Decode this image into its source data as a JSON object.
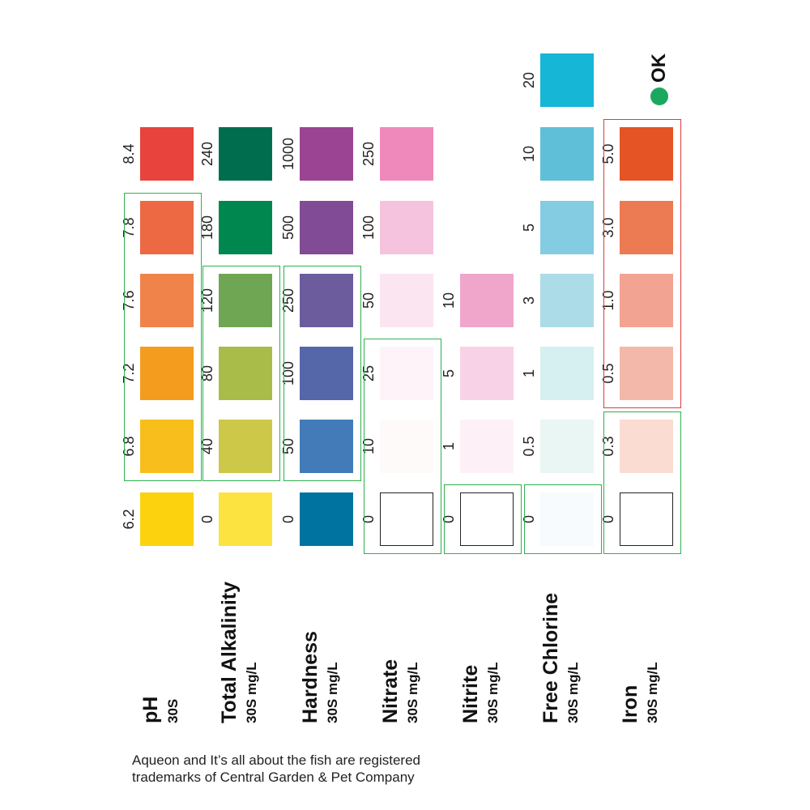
{
  "colors": {
    "ok_green": "#1aa860",
    "range_green": "#2fb04f",
    "range_red": "#e03c3c"
  },
  "ok_label": "OK",
  "footer": {
    "line1": "Aqueon and It’s all about the fish are registered",
    "line2": "trademarks of Central Garden & Pet Company"
  },
  "columns": [
    {
      "name": "pH",
      "unit": "30S",
      "pads": [
        {
          "value": "6.2",
          "color": "#fcd20f"
        },
        {
          "value": "6.8",
          "color": "#f8be1c"
        },
        {
          "value": "7.2",
          "color": "#f49c1d"
        },
        {
          "value": "7.6",
          "color": "#ef834a"
        },
        {
          "value": "7.8",
          "color": "#ec6943"
        },
        {
          "value": "8.4",
          "color": "#e8433c"
        }
      ]
    },
    {
      "name": "Total Alkalinity",
      "unit": "30S mg/L",
      "pads": [
        {
          "value": "0",
          "color": "#fde33f"
        },
        {
          "value": "40",
          "color": "#cec848"
        },
        {
          "value": "80",
          "color": "#a9bc4a"
        },
        {
          "value": "120",
          "color": "#6fa653"
        },
        {
          "value": "180",
          "color": "#00874f"
        },
        {
          "value": "240",
          "color": "#006e4e"
        }
      ]
    },
    {
      "name": "Hardness",
      "unit": "30S mg/L",
      "pads": [
        {
          "value": "0",
          "color": "#0073a0"
        },
        {
          "value": "50",
          "color": "#437bb9"
        },
        {
          "value": "100",
          "color": "#5566a9"
        },
        {
          "value": "250",
          "color": "#6c5c9e"
        },
        {
          "value": "500",
          "color": "#824b95"
        },
        {
          "value": "1000",
          "color": "#9b4493"
        }
      ]
    },
    {
      "name": "Nitrate",
      "unit": "30S mg/L",
      "pads": [
        {
          "value": "0",
          "color": "#ffffff"
        },
        {
          "value": "10",
          "color": "#fffafa"
        },
        {
          "value": "25",
          "color": "#fdf3f8"
        },
        {
          "value": "50",
          "color": "#fae5f1"
        },
        {
          "value": "100",
          "color": "#f5c3dd"
        },
        {
          "value": "250",
          "color": "#ef89bb"
        }
      ]
    },
    {
      "name": "Nitrite",
      "unit": "30S mg/L",
      "pads": [
        {
          "value": "0",
          "color": "#ffffff"
        },
        {
          "value": "1",
          "color": "#fdf1f7"
        },
        {
          "value": "5",
          "color": "#f8d2e6"
        },
        {
          "value": "10",
          "color": "#f0a6cb"
        }
      ]
    },
    {
      "name": "Free Chlorine",
      "unit": "30S mg/L",
      "pads": [
        {
          "value": "0",
          "color": "#f7fbfe"
        },
        {
          "value": "0.5",
          "color": "#eaf6f4"
        },
        {
          "value": "1",
          "color": "#d6eff0"
        },
        {
          "value": "3",
          "color": "#acdce7"
        },
        {
          "value": "5",
          "color": "#84cce1"
        },
        {
          "value": "10",
          "color": "#5fbfd9"
        },
        {
          "value": "20",
          "color": "#16b6d6"
        }
      ]
    },
    {
      "name": "Iron",
      "unit": "30S mg/L",
      "pads": [
        {
          "value": "0",
          "color": "#ffffff"
        },
        {
          "value": "0.3",
          "color": "#fadcd3"
        },
        {
          "value": "0.5",
          "color": "#f3b8a9"
        },
        {
          "value": "1.0",
          "color": "#f3a391"
        },
        {
          "value": "3.0",
          "color": "#ec7a52"
        },
        {
          "value": "5.0",
          "color": "#e55424"
        }
      ]
    }
  ]
}
